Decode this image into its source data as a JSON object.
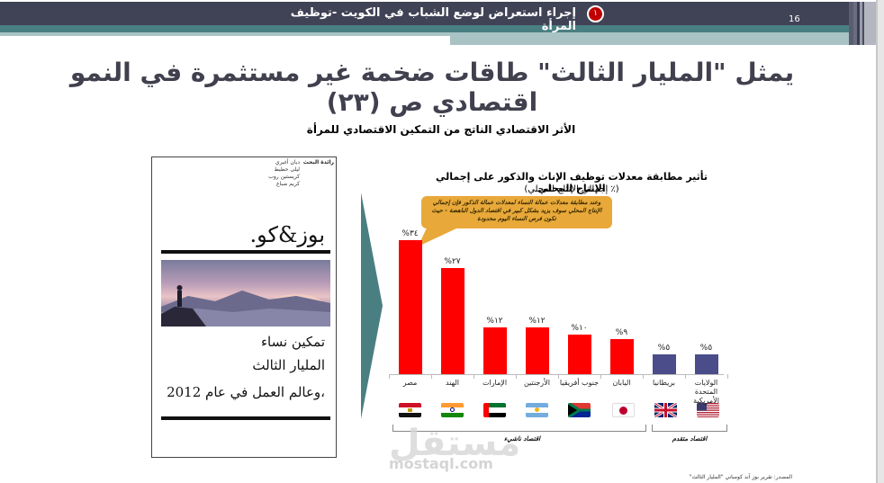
{
  "header": {
    "section_badge": "١",
    "title": "إجراء استعراض لوضع الشباب في الكويت -توظيف المرأة",
    "page_number": "16",
    "colors": {
      "dark": "#404255",
      "teal": "#4a7f82",
      "light": "#a9c3c4",
      "badge": "#c00000"
    }
  },
  "slide": {
    "title": "يمثل \"المليار الثالث\" طاقات ضخمة غير مستثمرة في النمو اقتصادي ص (٢٣)",
    "subtitle": "الأثر الاقتصادي الناتج من التمكين الاقتصادي للمرأة"
  },
  "cover": {
    "label": "رائدة البحث",
    "authors": [
      "ديان أغيري",
      "ليلى حطيط",
      "كريستين روب",
      "كريم صباغ"
    ],
    "brand": "بوز&كو.",
    "lines": [
      "تمكين نساء",
      "المليار الثالث",
      "،وعالم العمل في عام 2012"
    ]
  },
  "chart_data": {
    "type": "bar",
    "title": "تأثير مطابقة معدلات توظيف الإناث والذكور على إجمالي الإنتاج المحلي",
    "subtitle": "(٪ إجمالي الإنتاج المحلي)",
    "annotation": "وعند مطابقة معدلات عمالة النساء لمعدلات عمالة الذكور فإن إجمالي الإنتاج المحلي سوف يزيد بشكل كبير في اقتصاد الدول الناهضة - حيث تكون فرص النساء اليوم محدودة",
    "categories": [
      "مصر",
      "الهند",
      "الإمارات",
      "الأرجنتين",
      "جنوب أفريقيا",
      "اليابان",
      "بريطانيا",
      "الولايات المتحدة الأمريكية"
    ],
    "values": [
      34,
      27,
      12,
      12,
      10,
      9,
      5,
      5
    ],
    "value_labels": [
      "%٣٤",
      "%٢٧",
      "%١٢",
      "%١٢",
      "%١٠",
      "%٩",
      "%٥",
      "%٥"
    ],
    "bar_colors": [
      "#ff0000",
      "#ff0000",
      "#ff0000",
      "#ff0000",
      "#ff0000",
      "#ff0000",
      "#4a4d8a",
      "#4a4d8a"
    ],
    "groups": [
      {
        "label": "اقتصاد ناشيء",
        "members": [
          "مصر",
          "الهند",
          "الإمارات",
          "الأرجنتين",
          "جنوب أفريقيا",
          "اليابان"
        ]
      },
      {
        "label": "اقتصاد متقدم",
        "members": [
          "بريطانيا",
          "الولايات المتحدة الأمريكية"
        ]
      }
    ],
    "xlabel": "",
    "ylabel": "",
    "ylim": [
      0,
      36
    ],
    "grid": false,
    "legend": "none"
  },
  "source": "المصدر: تقرير بوز آند كومباني \"المليار الثالث\"",
  "watermark": {
    "text": "مستقل",
    "url": "mostaql.com"
  }
}
